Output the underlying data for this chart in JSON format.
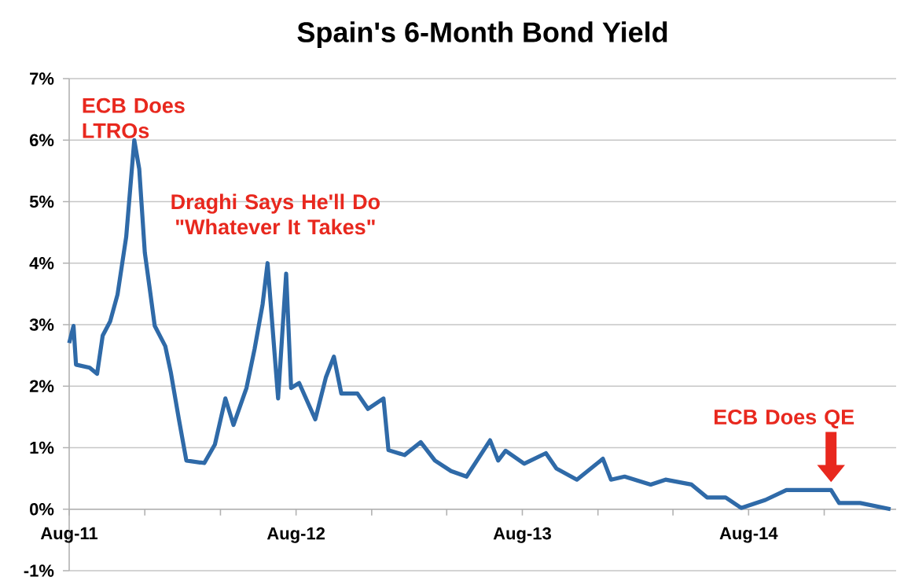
{
  "chart_data": {
    "type": "line",
    "title": "Spain's 6-Month Bond Yield",
    "x": [
      "2011-08-01",
      "2011-08-08",
      "2011-08-12",
      "2011-09-03",
      "2011-09-15",
      "2011-09-24",
      "2011-10-06",
      "2011-10-18",
      "2011-11-01",
      "2011-11-14",
      "2011-11-22",
      "2011-12-01",
      "2011-12-09",
      "2011-12-17",
      "2012-01-03",
      "2012-01-12",
      "2012-01-25",
      "2012-02-06",
      "2012-03-06",
      "2012-03-23",
      "2012-04-09",
      "2012-04-22",
      "2012-05-13",
      "2012-05-26",
      "2012-06-08",
      "2012-06-16",
      "2012-06-25",
      "2012-07-03",
      "2012-07-16",
      "2012-07-24",
      "2012-08-06",
      "2012-09-01",
      "2012-09-18",
      "2012-10-01",
      "2012-10-13",
      "2012-11-08",
      "2012-11-25",
      "2012-12-20",
      "2012-12-28",
      "2013-01-23",
      "2013-02-18",
      "2013-03-13",
      "2013-04-08",
      "2013-05-03",
      "2013-06-10",
      "2013-06-23",
      "2013-07-05",
      "2013-08-04",
      "2013-09-08",
      "2013-09-25",
      "2013-10-28",
      "2013-12-09",
      "2013-12-22",
      "2014-01-13",
      "2014-02-24",
      "2014-03-20",
      "2014-05-01",
      "2014-05-26",
      "2014-06-25",
      "2014-07-20",
      "2014-08-28",
      "2014-10-01",
      "2014-11-21",
      "2014-12-12",
      "2014-12-25",
      "2015-01-28",
      "2015-03-18"
    ],
    "values": [
      2.7,
      2.98,
      2.35,
      2.3,
      2.2,
      2.82,
      3.05,
      3.49,
      4.43,
      6.0,
      5.53,
      4.17,
      3.58,
      2.98,
      2.65,
      2.22,
      1.46,
      0.79,
      0.75,
      1.05,
      1.8,
      1.37,
      1.97,
      2.6,
      3.33,
      4.0,
      2.83,
      1.8,
      3.83,
      1.97,
      2.05,
      1.46,
      2.14,
      2.48,
      1.88,
      1.88,
      1.63,
      1.8,
      0.96,
      0.88,
      1.09,
      0.79,
      0.62,
      0.53,
      1.12,
      0.79,
      0.95,
      0.74,
      0.91,
      0.66,
      0.48,
      0.82,
      0.48,
      0.53,
      0.4,
      0.48,
      0.4,
      0.19,
      0.19,
      0.02,
      0.15,
      0.31,
      0.31,
      0.31,
      0.1,
      0.1,
      0.0
    ],
    "color": "#2f6aa8",
    "xlim": [
      "2011-08-01",
      "2015-03-27"
    ],
    "xticks": [
      {
        "value": "2011-08-01",
        "label": "Aug-11"
      },
      {
        "value": "2011-12-01",
        "label": null
      },
      {
        "value": "2012-04-01",
        "label": null
      },
      {
        "value": "2012-08-01",
        "label": "Aug-12"
      },
      {
        "value": "2012-12-01",
        "label": null
      },
      {
        "value": "2013-04-01",
        "label": null
      },
      {
        "value": "2013-08-01",
        "label": "Aug-13"
      },
      {
        "value": "2013-12-01",
        "label": null
      },
      {
        "value": "2014-04-01",
        "label": null
      },
      {
        "value": "2014-08-01",
        "label": "Aug-14"
      },
      {
        "value": "2014-12-01",
        "label": null
      }
    ],
    "ylim": [
      -1,
      7
    ],
    "yticks": [
      {
        "value": -1,
        "label": "-1%"
      },
      {
        "value": 0,
        "label": "0%"
      },
      {
        "value": 1,
        "label": "1%"
      },
      {
        "value": 2,
        "label": "2%"
      },
      {
        "value": 3,
        "label": "3%"
      },
      {
        "value": 4,
        "label": "4%"
      },
      {
        "value": 5,
        "label": "5%"
      },
      {
        "value": 6,
        "label": "6%"
      },
      {
        "value": 7,
        "label": "7%"
      }
    ],
    "grid": "y",
    "annotations": [
      {
        "text": "ECB Does LTROs",
        "x": "2011-11-14",
        "y": 6.0
      },
      {
        "text": "Draghi Says He'll Do \"Whatever It Takes\"",
        "x": "2012-06-16",
        "y": 4.0
      },
      {
        "text": "ECB Does QE",
        "x": "2014-12-12",
        "y": 0.31
      }
    ]
  }
}
